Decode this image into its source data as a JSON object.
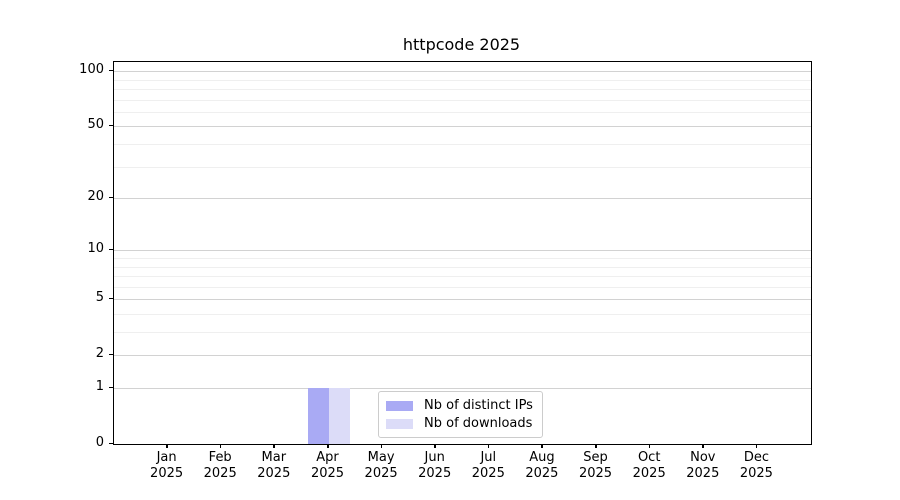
{
  "title": "httpcode 2025",
  "colors": {
    "bar_distinct_ips": "#a9aaf4",
    "bar_downloads": "#dcdcf8",
    "grid_major": "#d2d2d2",
    "grid_minor": "#efefef",
    "spine": "#000000",
    "legend_border": "#cccccc",
    "text": "#000000"
  },
  "legend": {
    "items": [
      {
        "label": "Nb of distinct IPs",
        "color": "#a9aaf4"
      },
      {
        "label": "Nb of downloads",
        "color": "#dcdcf8"
      }
    ]
  },
  "chart_data": {
    "type": "bar",
    "title": "httpcode 2025",
    "categories": [
      "Jan",
      "Feb",
      "Mar",
      "Apr",
      "May",
      "Jun",
      "Jul",
      "Aug",
      "Sep",
      "Oct",
      "Nov",
      "Dec"
    ],
    "year": "2025",
    "series": [
      {
        "name": "Nb of distinct IPs",
        "color": "#a9aaf4",
        "values": [
          0,
          0,
          0,
          1,
          0,
          0,
          0,
          0,
          0,
          0,
          0,
          0
        ]
      },
      {
        "name": "Nb of downloads",
        "color": "#dcdcf8",
        "values": [
          0,
          0,
          0,
          1,
          0,
          0,
          0,
          0,
          0,
          0,
          0,
          0
        ]
      }
    ],
    "xlabel": "",
    "ylabel": "",
    "y_scale": "log10(1+y)",
    "y_major_ticks": [
      0,
      1,
      2,
      5,
      10,
      20,
      50,
      100
    ],
    "y_minor_ticks": [
      3,
      4,
      6,
      7,
      8,
      9,
      30,
      40,
      60,
      70,
      80,
      90
    ],
    "ylim": [
      0,
      112
    ],
    "grid": "horizontal-only",
    "legend_position": "bottom-center-inside"
  }
}
